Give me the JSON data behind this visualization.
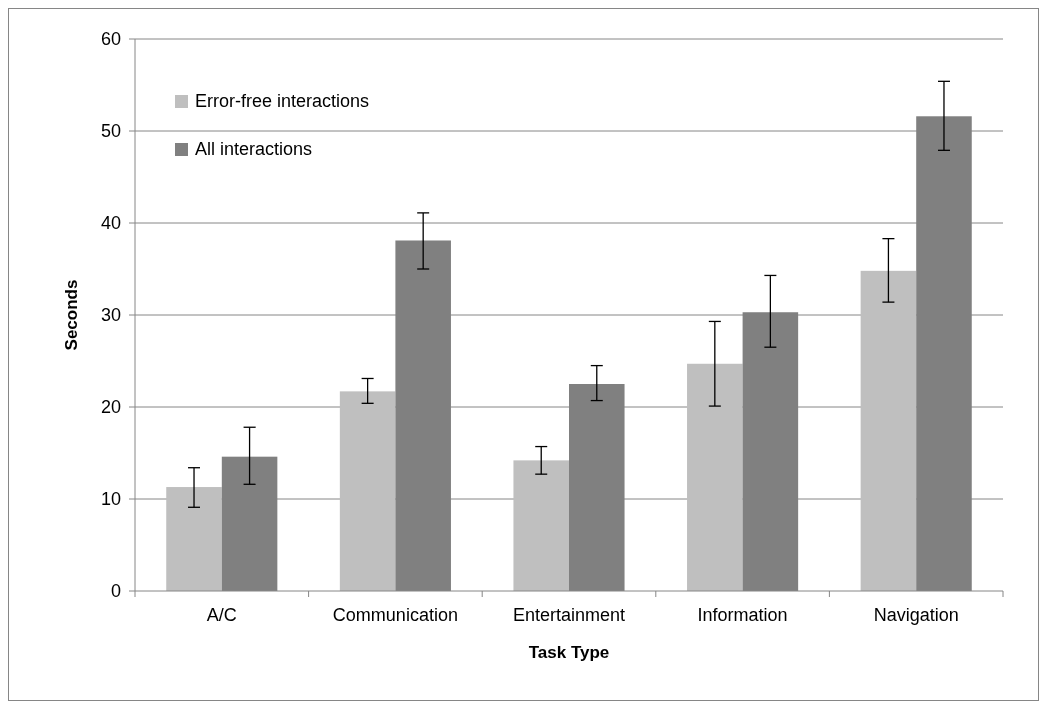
{
  "chart_data": {
    "type": "bar",
    "xlabel": "Task Type",
    "ylabel": "Seconds",
    "categories": [
      "A/C",
      "Communication",
      "Entertainment",
      "Information",
      "Navigation"
    ],
    "series": [
      {
        "name": "Error-free interactions",
        "color": "#bfbfbf",
        "values": [
          11.3,
          21.7,
          14.2,
          24.7,
          34.8
        ],
        "errors": [
          [
            9.1,
            13.4
          ],
          [
            20.4,
            23.1
          ],
          [
            12.7,
            15.7
          ],
          [
            20.1,
            29.3
          ],
          [
            31.4,
            38.3
          ]
        ]
      },
      {
        "name": "All interactions",
        "color": "#808080",
        "values": [
          14.6,
          38.1,
          22.5,
          30.3,
          51.6
        ],
        "errors": [
          [
            11.6,
            17.8
          ],
          [
            35.0,
            41.1
          ],
          [
            20.7,
            24.5
          ],
          [
            26.5,
            34.3
          ],
          [
            47.9,
            55.4
          ]
        ]
      }
    ],
    "ylim": [
      0,
      60
    ],
    "yticks": [
      0,
      10,
      20,
      30,
      40,
      50,
      60
    ],
    "grid": "y",
    "legend": "top left"
  }
}
